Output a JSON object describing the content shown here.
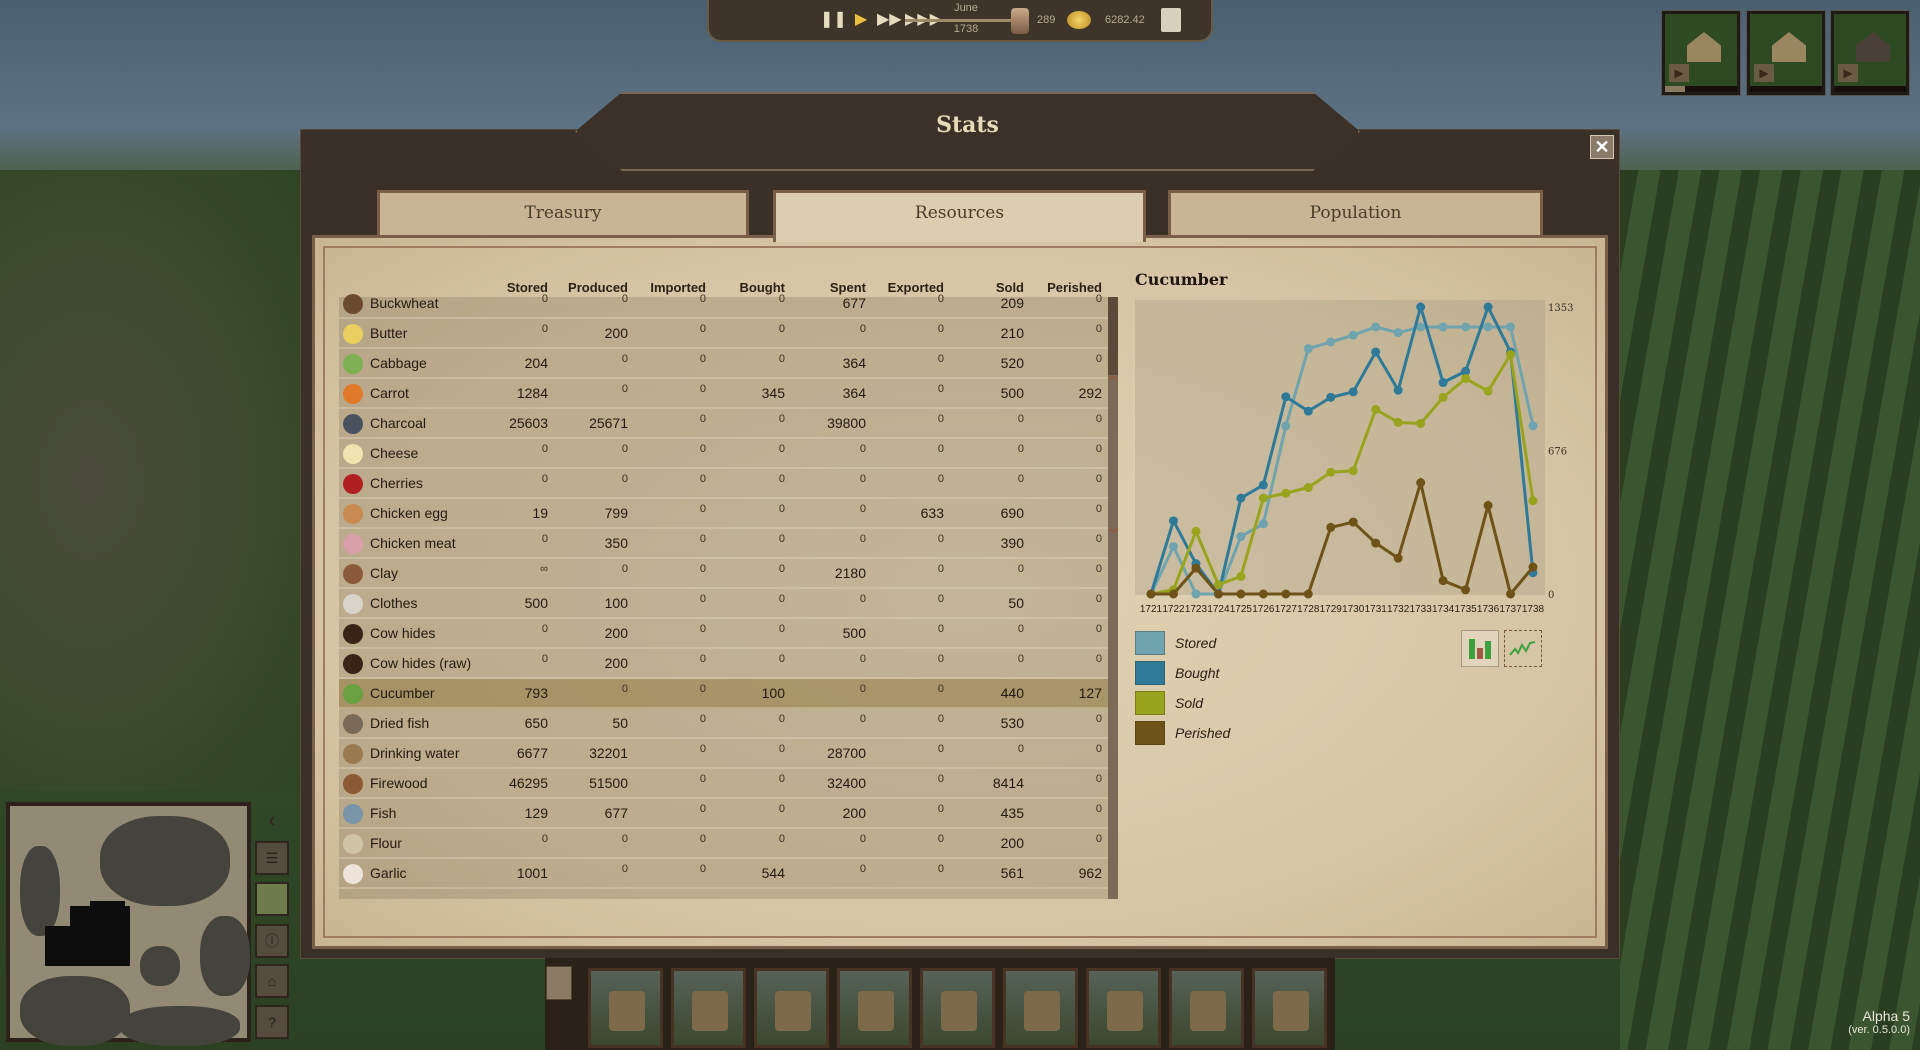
{
  "topbar": {
    "buttons": [
      "pause-icon",
      "play-icon",
      "fast-forward-icon",
      "fastest-forward-icon"
    ],
    "month": "June",
    "year": "1738",
    "population": "289",
    "gold": "6282.42"
  },
  "window": {
    "title": "Stats",
    "close_label": "✕",
    "tabs": [
      {
        "label": "Treasury",
        "active": false
      },
      {
        "label": "Resources",
        "active": true
      },
      {
        "label": "Population",
        "active": false
      }
    ]
  },
  "table": {
    "name_header": "",
    "headers": [
      "Stored",
      "Produced",
      "Imported",
      "Bought",
      "Spent",
      "Exported",
      "Sold",
      "Perished"
    ],
    "selected": "Cucumber",
    "rows": [
      {
        "name": "Buckwheat",
        "icon": "buckwheat-icon",
        "color": "#6b4a30",
        "values": [
          "0",
          "0",
          "0",
          "0",
          "677",
          "0",
          "209",
          "0"
        ]
      },
      {
        "name": "Butter",
        "icon": "butter-icon",
        "color": "#e8cf60",
        "values": [
          "0",
          "200",
          "0",
          "0",
          "0",
          "0",
          "210",
          "0"
        ]
      },
      {
        "name": "Cabbage",
        "icon": "cabbage-icon",
        "color": "#7cb050",
        "values": [
          "204",
          "0",
          "0",
          "0",
          "364",
          "0",
          "520",
          "0"
        ]
      },
      {
        "name": "Carrot",
        "icon": "carrot-icon",
        "color": "#e07a2a",
        "values": [
          "1284",
          "0",
          "0",
          "345",
          "364",
          "0",
          "500",
          "292"
        ]
      },
      {
        "name": "Charcoal",
        "icon": "charcoal-icon",
        "color": "#4a5260",
        "values": [
          "25603",
          "25671",
          "0",
          "0",
          "39800",
          "0",
          "0",
          "0"
        ]
      },
      {
        "name": "Cheese",
        "icon": "cheese-icon",
        "color": "#f0e4b0",
        "values": [
          "0",
          "0",
          "0",
          "0",
          "0",
          "0",
          "0",
          "0"
        ]
      },
      {
        "name": "Cherries",
        "icon": "cherries-icon",
        "color": "#b02020",
        "values": [
          "0",
          "0",
          "0",
          "0",
          "0",
          "0",
          "0",
          "0"
        ]
      },
      {
        "name": "Chicken egg",
        "icon": "chicken-egg-icon",
        "color": "#c88a50",
        "values": [
          "19",
          "799",
          "0",
          "0",
          "0",
          "633",
          "690",
          "0"
        ]
      },
      {
        "name": "Chicken meat",
        "icon": "chicken-meat-icon",
        "color": "#d8a0a8",
        "values": [
          "0",
          "350",
          "0",
          "0",
          "0",
          "0",
          "390",
          "0"
        ]
      },
      {
        "name": "Clay",
        "icon": "clay-icon",
        "color": "#8a5a3a",
        "values": [
          "∞",
          "0",
          "0",
          "0",
          "2180",
          "0",
          "0",
          "0"
        ]
      },
      {
        "name": "Clothes",
        "icon": "clothes-icon",
        "color": "#d8d4cc",
        "values": [
          "500",
          "100",
          "0",
          "0",
          "0",
          "0",
          "50",
          "0"
        ]
      },
      {
        "name": "Cow hides",
        "icon": "cow-hides-icon",
        "color": "#3a2418",
        "values": [
          "0",
          "200",
          "0",
          "0",
          "500",
          "0",
          "0",
          "0"
        ]
      },
      {
        "name": "Cow hides (raw)",
        "icon": "cow-hides-raw-icon",
        "color": "#3a2418",
        "values": [
          "0",
          "200",
          "0",
          "0",
          "0",
          "0",
          "0",
          "0"
        ]
      },
      {
        "name": "Cucumber",
        "icon": "cucumber-icon",
        "color": "#6aa040",
        "values": [
          "793",
          "0",
          "0",
          "100",
          "0",
          "0",
          "440",
          "127"
        ]
      },
      {
        "name": "Dried fish",
        "icon": "dried-fish-icon",
        "color": "#7a6a58",
        "values": [
          "650",
          "50",
          "0",
          "0",
          "0",
          "0",
          "530",
          "0"
        ]
      },
      {
        "name": "Drinking water",
        "icon": "drinking-water-icon",
        "color": "#9a7a50",
        "values": [
          "6677",
          "32201",
          "0",
          "0",
          "28700",
          "0",
          "0",
          "0"
        ]
      },
      {
        "name": "Firewood",
        "icon": "firewood-icon",
        "color": "#8a5a34",
        "values": [
          "46295",
          "51500",
          "0",
          "0",
          "32400",
          "0",
          "8414",
          "0"
        ]
      },
      {
        "name": "Fish",
        "icon": "fish-icon",
        "color": "#7a94a8",
        "values": [
          "129",
          "677",
          "0",
          "0",
          "200",
          "0",
          "435",
          "0"
        ]
      },
      {
        "name": "Flour",
        "icon": "flour-icon",
        "color": "#cfc4a4",
        "values": [
          "0",
          "0",
          "0",
          "0",
          "0",
          "0",
          "200",
          "0"
        ]
      },
      {
        "name": "Garlic",
        "icon": "garlic-icon",
        "color": "#ece4d8",
        "values": [
          "1001",
          "0",
          "0",
          "544",
          "0",
          "0",
          "561",
          "962"
        ]
      }
    ]
  },
  "chart_data": {
    "type": "line",
    "title": "Cucumber",
    "x": [
      1721,
      1722,
      1723,
      1724,
      1725,
      1726,
      1727,
      1728,
      1729,
      1730,
      1731,
      1732,
      1733,
      1734,
      1735,
      1736,
      1737,
      1738
    ],
    "y_ticks": [
      "0",
      "676",
      "1353"
    ],
    "ylim": [
      0,
      1353
    ],
    "grid": false,
    "legend_placement": "bottom-left",
    "series": [
      {
        "name": "Stored",
        "color": "#6fa3ae",
        "values": [
          0,
          224,
          0,
          0,
          271,
          331,
          792,
          1157,
          1188,
          1220,
          1259,
          1232,
          1259,
          1259,
          1259,
          1259,
          1259,
          793
        ]
      },
      {
        "name": "Bought",
        "color": "#2f7a98",
        "values": [
          0,
          345,
          143,
          0,
          452,
          514,
          930,
          862,
          927,
          953,
          1141,
          961,
          1353,
          997,
          1050,
          1353,
          1141,
          100
        ]
      },
      {
        "name": "Sold",
        "color": "#98a41e",
        "values": [
          0,
          20,
          295,
          44,
          83,
          452,
          475,
          502,
          574,
          581,
          870,
          809,
          804,
          927,
          1016,
          956,
          1129,
          440
        ]
      },
      {
        "name": "Perished",
        "color": "#6e5318",
        "values": [
          0,
          0,
          122,
          0,
          0,
          0,
          0,
          0,
          314,
          339,
          240,
          169,
          525,
          63,
          20,
          417,
          0,
          127
        ]
      }
    ],
    "view_buttons": [
      "bar-chart-icon",
      "line-chart-icon"
    ]
  },
  "toolbar": {
    "cards": [
      "house-icon",
      "well-icon",
      "windmill-icon",
      "market-icon",
      "justice-icon",
      "park-bench-icon",
      "books-icon",
      "herbs-icon",
      "chapel-icon"
    ]
  },
  "version": {
    "name": "Alpha 5",
    "build": "(ver. 0.5.0.0)"
  }
}
